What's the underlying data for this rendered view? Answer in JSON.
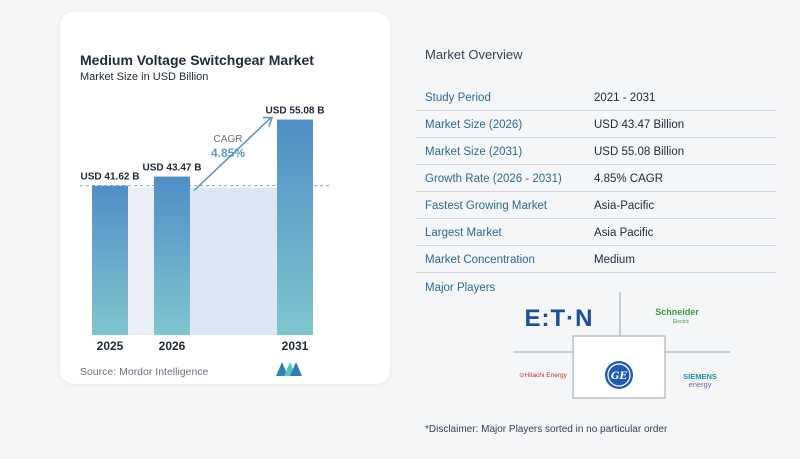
{
  "chart_data": {
    "type": "bar",
    "title": "Medium Voltage Switchgear Market",
    "subtitle": "Market Size in USD Billion",
    "categories": [
      "2025",
      "2026",
      "2031"
    ],
    "values": [
      41.62,
      43.47,
      55.08
    ],
    "data_labels": [
      "USD 41.62 B",
      "USD 43.47 B",
      "USD 55.08 B"
    ],
    "cagr_label": "CAGR",
    "cagr_value": "4.85%",
    "colors": {
      "bar_2025": "#5b99c9",
      "bar_2026": "#5b99c9",
      "bar_2031": "#4a8fc4",
      "cagr": "#5b99c9",
      "band": "#dbe8f3"
    }
  },
  "source": "Source:  Mordor Intelligence",
  "overview": {
    "title": "Market Overview",
    "rows": [
      {
        "label": "Study Period",
        "value": "2021 - 2031"
      },
      {
        "label": "Market Size (2026)",
        "value": "USD 43.47 Billion"
      },
      {
        "label": "Market Size (2031)",
        "value": "USD 55.08 Billion"
      },
      {
        "label": "Growth Rate (2026 - 2031)",
        "value": "4.85% CAGR"
      },
      {
        "label": "Fastest Growing Market",
        "value": "Asia-Pacific"
      },
      {
        "label": "Largest Market",
        "value": "Asia Pacific"
      },
      {
        "label": "Market Concentration",
        "value": "Medium"
      }
    ]
  },
  "players": {
    "title": "Major Players",
    "eaton": "E:T·N",
    "schneider_line1": "Schneider",
    "schneider_line2": "Electric",
    "hitachi": "⊙Hitachi Energy",
    "ge": "GE",
    "siemens_line1": "SIEMENS",
    "siemens_line2": "energy"
  },
  "disclaimer": "*Disclaimer: Major Players sorted in no particular order"
}
